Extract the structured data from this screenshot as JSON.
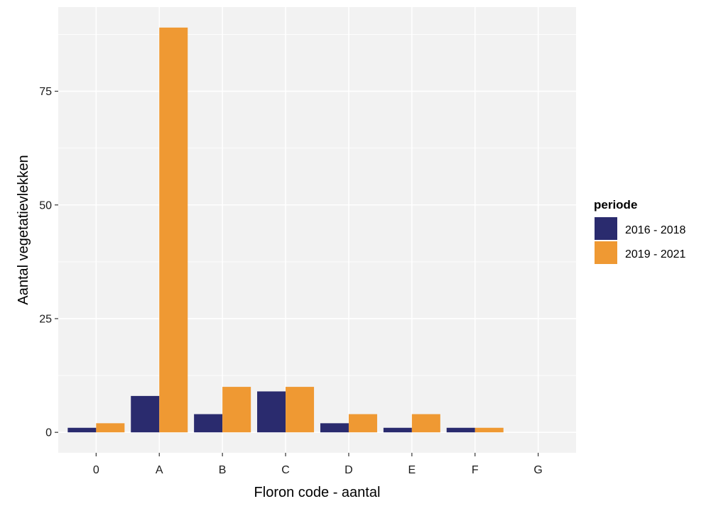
{
  "chart_data": {
    "type": "bar",
    "title": "",
    "xlabel": "Floron code - aantal",
    "ylabel": "Aantal vegetatievlekken",
    "categories": [
      "0",
      "A",
      "B",
      "C",
      "D",
      "E",
      "F",
      "G"
    ],
    "series": [
      {
        "name": "2016 - 2018",
        "color": "#2a2b6e",
        "values": [
          1,
          8,
          4,
          9,
          2,
          1,
          1,
          0
        ]
      },
      {
        "name": "2019 - 2021",
        "color": "#ef9933",
        "values": [
          2,
          89,
          10,
          10,
          4,
          4,
          1,
          0
        ]
      }
    ],
    "ylim": [
      -4.5,
      93.5
    ],
    "yticks": [
      0,
      25,
      50,
      75
    ],
    "ytick_labels": [
      "0",
      "25",
      "50",
      "75"
    ],
    "legend": {
      "title": "periode",
      "position": "right"
    },
    "panel_background": "#f2f2f2",
    "grid_color": "#ffffff",
    "grid": true
  }
}
